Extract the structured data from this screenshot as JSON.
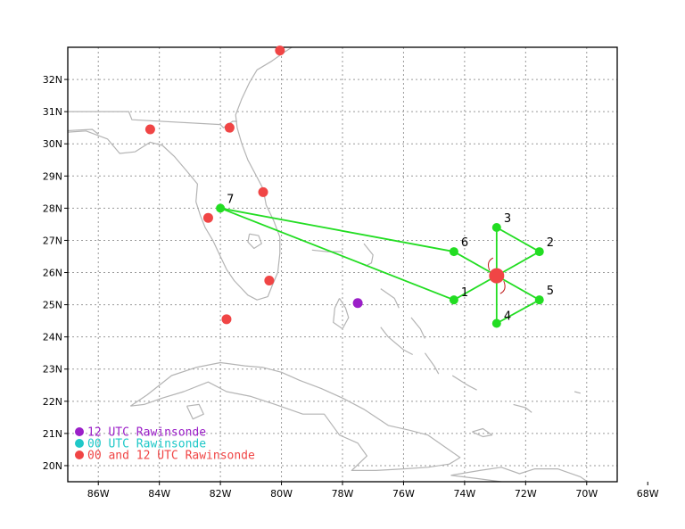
{
  "map": {
    "lon_range": [
      -87,
      -69
    ],
    "lat_range": [
      19.5,
      33
    ],
    "lon_ticks": [
      {
        "value": -86,
        "label": "86W"
      },
      {
        "value": -84,
        "label": "84W"
      },
      {
        "value": -82,
        "label": "82W"
      },
      {
        "value": -80,
        "label": "80W"
      },
      {
        "value": -78,
        "label": "78W"
      },
      {
        "value": -76,
        "label": "76W"
      },
      {
        "value": -74,
        "label": "74W"
      },
      {
        "value": -72,
        "label": "72W"
      },
      {
        "value": -70,
        "label": "70W"
      },
      {
        "value": -68,
        "label": "68W"
      }
    ],
    "lat_ticks": [
      {
        "value": 20,
        "label": "20N"
      },
      {
        "value": 21,
        "label": "21N"
      },
      {
        "value": 22,
        "label": "22N"
      },
      {
        "value": 23,
        "label": "23N"
      },
      {
        "value": 24,
        "label": "24N"
      },
      {
        "value": 25,
        "label": "25N"
      },
      {
        "value": 26,
        "label": "26N"
      },
      {
        "value": 27,
        "label": "27N"
      },
      {
        "value": 28,
        "label": "28N"
      },
      {
        "value": 29,
        "label": "29N"
      },
      {
        "value": 30,
        "label": "30N"
      },
      {
        "value": 31,
        "label": "31N"
      },
      {
        "value": 32,
        "label": "32N"
      }
    ],
    "colors": {
      "frame": "#000000",
      "grid": "#9a9a9a",
      "coast": "#b4b4b4",
      "track": "#22dd22",
      "center": "#f04545",
      "rawin_12": "#9b1fc8",
      "rawin_00": "#1fc8c8",
      "rawin_both": "#f04545",
      "wind_arc": "#c02020"
    }
  },
  "storm_center": {
    "lon": -72.95,
    "lat": 25.9
  },
  "dropsondes": [
    {
      "label": "1",
      "lon": -74.35,
      "lat": 25.15
    },
    {
      "label": "2",
      "lon": -71.55,
      "lat": 26.65
    },
    {
      "label": "3",
      "lon": -72.95,
      "lat": 27.4
    },
    {
      "label": "4",
      "lon": -72.95,
      "lat": 24.42
    },
    {
      "label": "5",
      "lon": -71.55,
      "lat": 25.15
    },
    {
      "label": "6",
      "lon": -74.35,
      "lat": 26.65
    },
    {
      "label": "7",
      "lon": -82.0,
      "lat": 28.0
    }
  ],
  "flight_track": [
    "7",
    "1",
    "center",
    "5",
    "4",
    "center",
    "2",
    "3",
    "center",
    "6",
    "7"
  ],
  "rawinsondes": [
    {
      "type": "12",
      "lon": -77.5,
      "lat": 25.05
    },
    {
      "type": "both",
      "lon": -80.05,
      "lat": 32.9
    },
    {
      "type": "both",
      "lon": -84.3,
      "lat": 30.45
    },
    {
      "type": "both",
      "lon": -81.7,
      "lat": 30.5
    },
    {
      "type": "both",
      "lon": -80.6,
      "lat": 28.5
    },
    {
      "type": "both",
      "lon": -82.4,
      "lat": 27.7
    },
    {
      "type": "both",
      "lon": -80.4,
      "lat": 25.75
    },
    {
      "type": "both",
      "lon": -81.8,
      "lat": 24.55
    }
  ],
  "legend": [
    {
      "type": "12",
      "text": "12 UTC Rawinsonde"
    },
    {
      "type": "00",
      "text": "00 UTC Rawinsonde"
    },
    {
      "type": "both",
      "text": "00 and 12 UTC Rawinsonde"
    }
  ]
}
